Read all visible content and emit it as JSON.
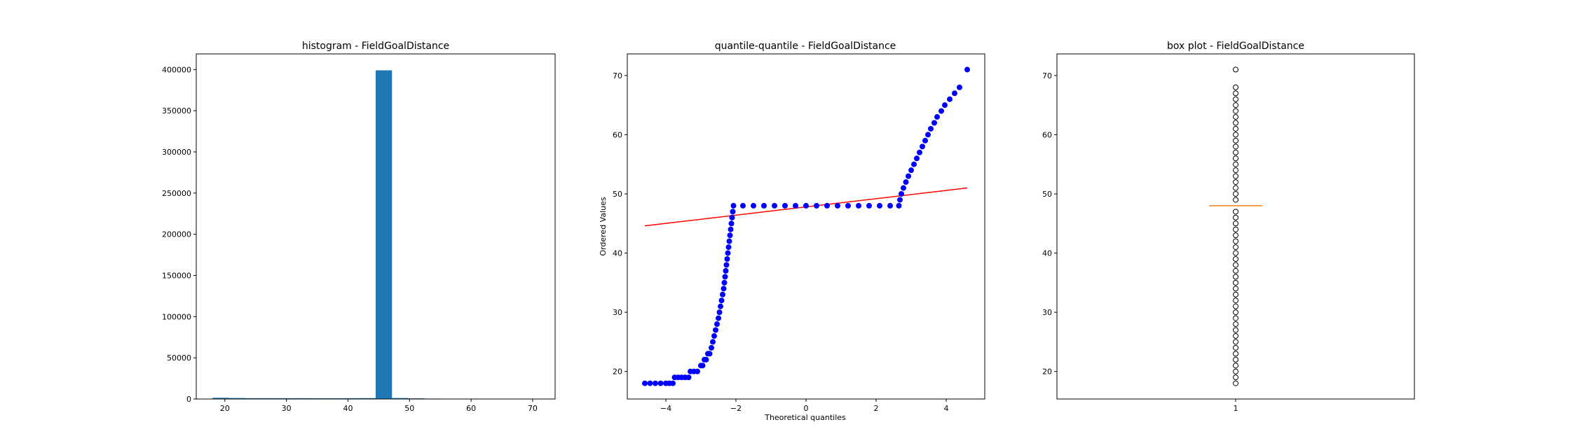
{
  "chart_data": [
    {
      "type": "bar",
      "title": "histogram - FieldGoalDistance",
      "xlabel": "",
      "ylabel": "",
      "xlim": [
        15.35,
        73.65
      ],
      "ylim": [
        0,
        418950
      ],
      "xticks": [
        20,
        30,
        40,
        50,
        60,
        70
      ],
      "yticks": [
        0,
        50000,
        100000,
        150000,
        200000,
        250000,
        300000,
        350000,
        400000
      ],
      "bin_edges": [
        18,
        20.65,
        23.3,
        25.95,
        28.6,
        31.25,
        33.9,
        36.55,
        39.2,
        41.85,
        44.5,
        47.15,
        49.8,
        52.45,
        55.1,
        57.75,
        60.4,
        63.05,
        65.7,
        68.35,
        71
      ],
      "counts": [
        1500,
        1200,
        1000,
        1000,
        1000,
        1000,
        900,
        900,
        1000,
        1100,
        399000,
        1200,
        800,
        500,
        0,
        0,
        0,
        0,
        0,
        0
      ],
      "color": "#1f77b4"
    },
    {
      "type": "scatter",
      "title": "quantile-quantile - FieldGoalDistance",
      "xlabel": "Theoretical quantiles",
      "ylabel": "Ordered Values",
      "xlim": [
        -5.1,
        5.1
      ],
      "ylim": [
        15.35,
        73.65
      ],
      "xticks": [
        -4,
        -2,
        0,
        2,
        4
      ],
      "yticks": [
        20,
        30,
        40,
        50,
        60,
        70
      ],
      "points": [
        [
          -4.6,
          18
        ],
        [
          -4.45,
          18
        ],
        [
          -4.3,
          18
        ],
        [
          -4.15,
          18
        ],
        [
          -4.0,
          18
        ],
        [
          -3.9,
          18
        ],
        [
          -3.8,
          18
        ],
        [
          -3.75,
          19
        ],
        [
          -3.65,
          19
        ],
        [
          -3.55,
          19
        ],
        [
          -3.45,
          19
        ],
        [
          -3.35,
          19
        ],
        [
          -3.3,
          20
        ],
        [
          -3.2,
          20
        ],
        [
          -3.1,
          20
        ],
        [
          -3.0,
          21
        ],
        [
          -2.95,
          21
        ],
        [
          -2.9,
          22
        ],
        [
          -2.85,
          22
        ],
        [
          -2.8,
          23
        ],
        [
          -2.75,
          23
        ],
        [
          -2.7,
          24
        ],
        [
          -2.66,
          25
        ],
        [
          -2.62,
          26
        ],
        [
          -2.58,
          27
        ],
        [
          -2.54,
          28
        ],
        [
          -2.5,
          29
        ],
        [
          -2.47,
          30
        ],
        [
          -2.44,
          31
        ],
        [
          -2.41,
          32
        ],
        [
          -2.38,
          33
        ],
        [
          -2.35,
          34
        ],
        [
          -2.33,
          35
        ],
        [
          -2.31,
          36
        ],
        [
          -2.29,
          37
        ],
        [
          -2.27,
          38
        ],
        [
          -2.25,
          39
        ],
        [
          -2.23,
          40
        ],
        [
          -2.21,
          41
        ],
        [
          -2.19,
          42
        ],
        [
          -2.17,
          43
        ],
        [
          -2.15,
          44
        ],
        [
          -2.13,
          45
        ],
        [
          -2.11,
          46
        ],
        [
          -2.09,
          47
        ],
        [
          -2.07,
          48
        ],
        [
          -1.8,
          48
        ],
        [
          -1.5,
          48
        ],
        [
          -1.2,
          48
        ],
        [
          -0.9,
          48
        ],
        [
          -0.6,
          48
        ],
        [
          -0.3,
          48
        ],
        [
          0.0,
          48
        ],
        [
          0.3,
          48
        ],
        [
          0.6,
          48
        ],
        [
          0.9,
          48
        ],
        [
          1.2,
          48
        ],
        [
          1.5,
          48
        ],
        [
          1.8,
          48
        ],
        [
          2.1,
          48
        ],
        [
          2.4,
          48
        ],
        [
          2.65,
          48
        ],
        [
          2.68,
          49
        ],
        [
          2.72,
          50
        ],
        [
          2.78,
          51
        ],
        [
          2.85,
          52
        ],
        [
          2.92,
          53
        ],
        [
          3.0,
          54
        ],
        [
          3.08,
          55
        ],
        [
          3.16,
          56
        ],
        [
          3.24,
          57
        ],
        [
          3.32,
          58
        ],
        [
          3.4,
          59
        ],
        [
          3.48,
          60
        ],
        [
          3.56,
          61
        ],
        [
          3.66,
          62
        ],
        [
          3.74,
          63
        ],
        [
          3.86,
          64
        ],
        [
          3.96,
          65
        ],
        [
          4.1,
          66
        ],
        [
          4.24,
          67
        ],
        [
          4.38,
          68
        ],
        [
          4.6,
          71
        ]
      ],
      "fit_line": [
        [
          -4.6,
          44.6
        ],
        [
          4.6,
          51.0
        ]
      ],
      "point_color": "#0000ff",
      "line_color": "#ff0000"
    },
    {
      "type": "box",
      "title": "box plot - FieldGoalDistance",
      "xlabel": "",
      "ylabel": "",
      "category": "1",
      "ylim": [
        15.35,
        73.65
      ],
      "yticks": [
        20,
        30,
        40,
        50,
        60,
        70
      ],
      "median": 48,
      "q1": 48,
      "q3": 48,
      "whisker_low": 48,
      "whisker_high": 48,
      "fliers": [
        18,
        19,
        20,
        21,
        22,
        23,
        24,
        25,
        26,
        27,
        28,
        29,
        30,
        31,
        32,
        33,
        34,
        35,
        36,
        37,
        38,
        39,
        40,
        41,
        42,
        43,
        44,
        45,
        46,
        47,
        49,
        50,
        51,
        52,
        53,
        54,
        55,
        56,
        57,
        58,
        59,
        60,
        61,
        62,
        63,
        64,
        65,
        66,
        67,
        68,
        71
      ],
      "median_color": "#ff7f0e"
    }
  ]
}
